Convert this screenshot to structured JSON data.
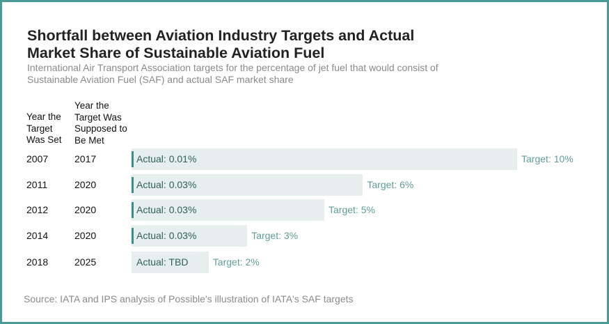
{
  "chart_data": {
    "type": "bar",
    "title": "Shortfall between Aviation Industry Targets and Actual Market Share of Sustainable Aviation Fuel",
    "subtitle": "International Air Transport Association targets for the percentage of jet fuel that would consist of Sustainable Aviation Fuel (SAF) and actual SAF market share",
    "column_headers": [
      "Year the Target Was Set",
      "Year the Target Was Supposed to Be Met"
    ],
    "rows": [
      {
        "year_set": "2007",
        "year_met": "2017",
        "target": 10,
        "actual": 0.01,
        "actual_label": "Actual: 0.01%",
        "target_label": "Target: 10%"
      },
      {
        "year_set": "2011",
        "year_met": "2020",
        "target": 6,
        "actual": 0.03,
        "actual_label": "Actual: 0.03%",
        "target_label": "Target: 6%"
      },
      {
        "year_set": "2012",
        "year_met": "2020",
        "target": 5,
        "actual": 0.03,
        "actual_label": "Actual: 0.03%",
        "target_label": "Target: 5%"
      },
      {
        "year_set": "2014",
        "year_met": "2020",
        "target": 3,
        "actual": 0.03,
        "actual_label": "Actual: 0.03%",
        "target_label": "Target: 3%"
      },
      {
        "year_set": "2018",
        "year_met": "2025",
        "target": 2,
        "actual": null,
        "actual_label": "Actual: TBD",
        "target_label": "Target: 2%"
      }
    ],
    "source": "Source: IATA and IPS analysis of Possible's illustration of IATA's SAF targets",
    "colors": {
      "target_bar": "#e6efed",
      "actual_marker": "#3a8f89",
      "target_text": "#5e9e99",
      "border": "#4a9a95"
    }
  }
}
